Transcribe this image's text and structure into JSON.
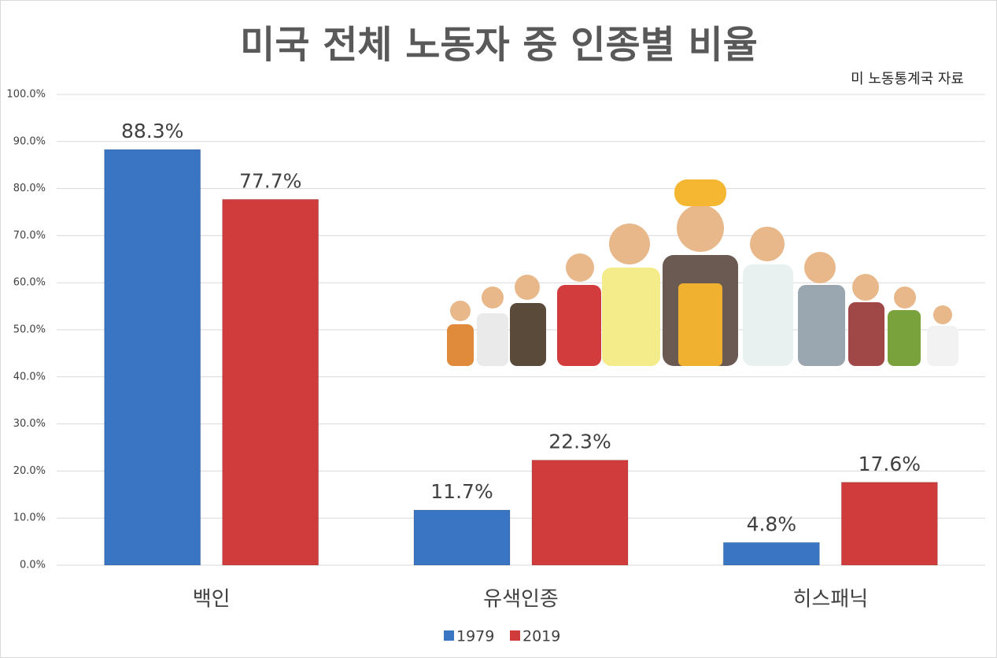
{
  "chart_data": {
    "type": "bar",
    "title": "미국 전체 노동자 중 인종별 비율",
    "subtitle": "미 노동통계국 자료",
    "categories": [
      "백인",
      "유색인종",
      "히스패닉"
    ],
    "series": [
      {
        "name": "1979",
        "color": "#3a75c4",
        "values": [
          88.3,
          11.7,
          4.8
        ],
        "value_labels": [
          "88.3%",
          "11.7%",
          "4.8%"
        ]
      },
      {
        "name": "2019",
        "color": "#d03c3c",
        "values": [
          77.7,
          22.3,
          17.6
        ],
        "value_labels": [
          "77.7%",
          "22.3%",
          "17.6%"
        ]
      }
    ],
    "ylim": [
      0,
      100
    ],
    "yticks": [
      {
        "value": 0,
        "label": "0.0%"
      },
      {
        "value": 10,
        "label": "10.0%"
      },
      {
        "value": 20,
        "label": "20.0%"
      },
      {
        "value": 30,
        "label": "30.0%"
      },
      {
        "value": 40,
        "label": "40.0%"
      },
      {
        "value": 50,
        "label": "50.0%"
      },
      {
        "value": 60,
        "label": "60.0%"
      },
      {
        "value": 70,
        "label": "70.0%"
      },
      {
        "value": 80,
        "label": "80.0%"
      },
      {
        "value": 90,
        "label": "90.0%"
      },
      {
        "value": 100,
        "label": "100.0%"
      }
    ],
    "grid": true,
    "legend": "bottom"
  }
}
